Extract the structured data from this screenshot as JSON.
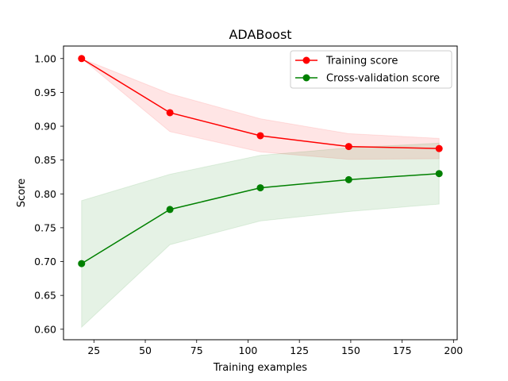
{
  "chart_data": {
    "type": "line",
    "title": "ADABoost",
    "xlabel": "Training examples",
    "ylabel": "Score",
    "xlim": [
      10.2,
      201.8
    ],
    "ylim": [
      0.5845,
      1.0185
    ],
    "xticks": [
      25,
      50,
      75,
      100,
      125,
      150,
      175,
      200
    ],
    "yticks": [
      0.6,
      0.65,
      0.7,
      0.75,
      0.8,
      0.85,
      0.9,
      0.95,
      1.0
    ],
    "grid": false,
    "legend_position": "top-right",
    "x": [
      19,
      62,
      106,
      149,
      193
    ],
    "series": [
      {
        "name": "Training score",
        "color": "#ff0000",
        "band_color": "#ff0000",
        "values": [
          1.0,
          0.92,
          0.886,
          0.87,
          0.867
        ],
        "lower": [
          1.0,
          0.892,
          0.862,
          0.851,
          0.852
        ],
        "upper": [
          1.0,
          0.948,
          0.911,
          0.889,
          0.882
        ]
      },
      {
        "name": "Cross-validation score",
        "color": "#008000",
        "band_color": "#008000",
        "values": [
          0.697,
          0.777,
          0.809,
          0.821,
          0.83
        ],
        "lower": [
          0.603,
          0.725,
          0.76,
          0.774,
          0.785
        ],
        "upper": [
          0.79,
          0.829,
          0.857,
          0.868,
          0.875
        ]
      }
    ]
  }
}
